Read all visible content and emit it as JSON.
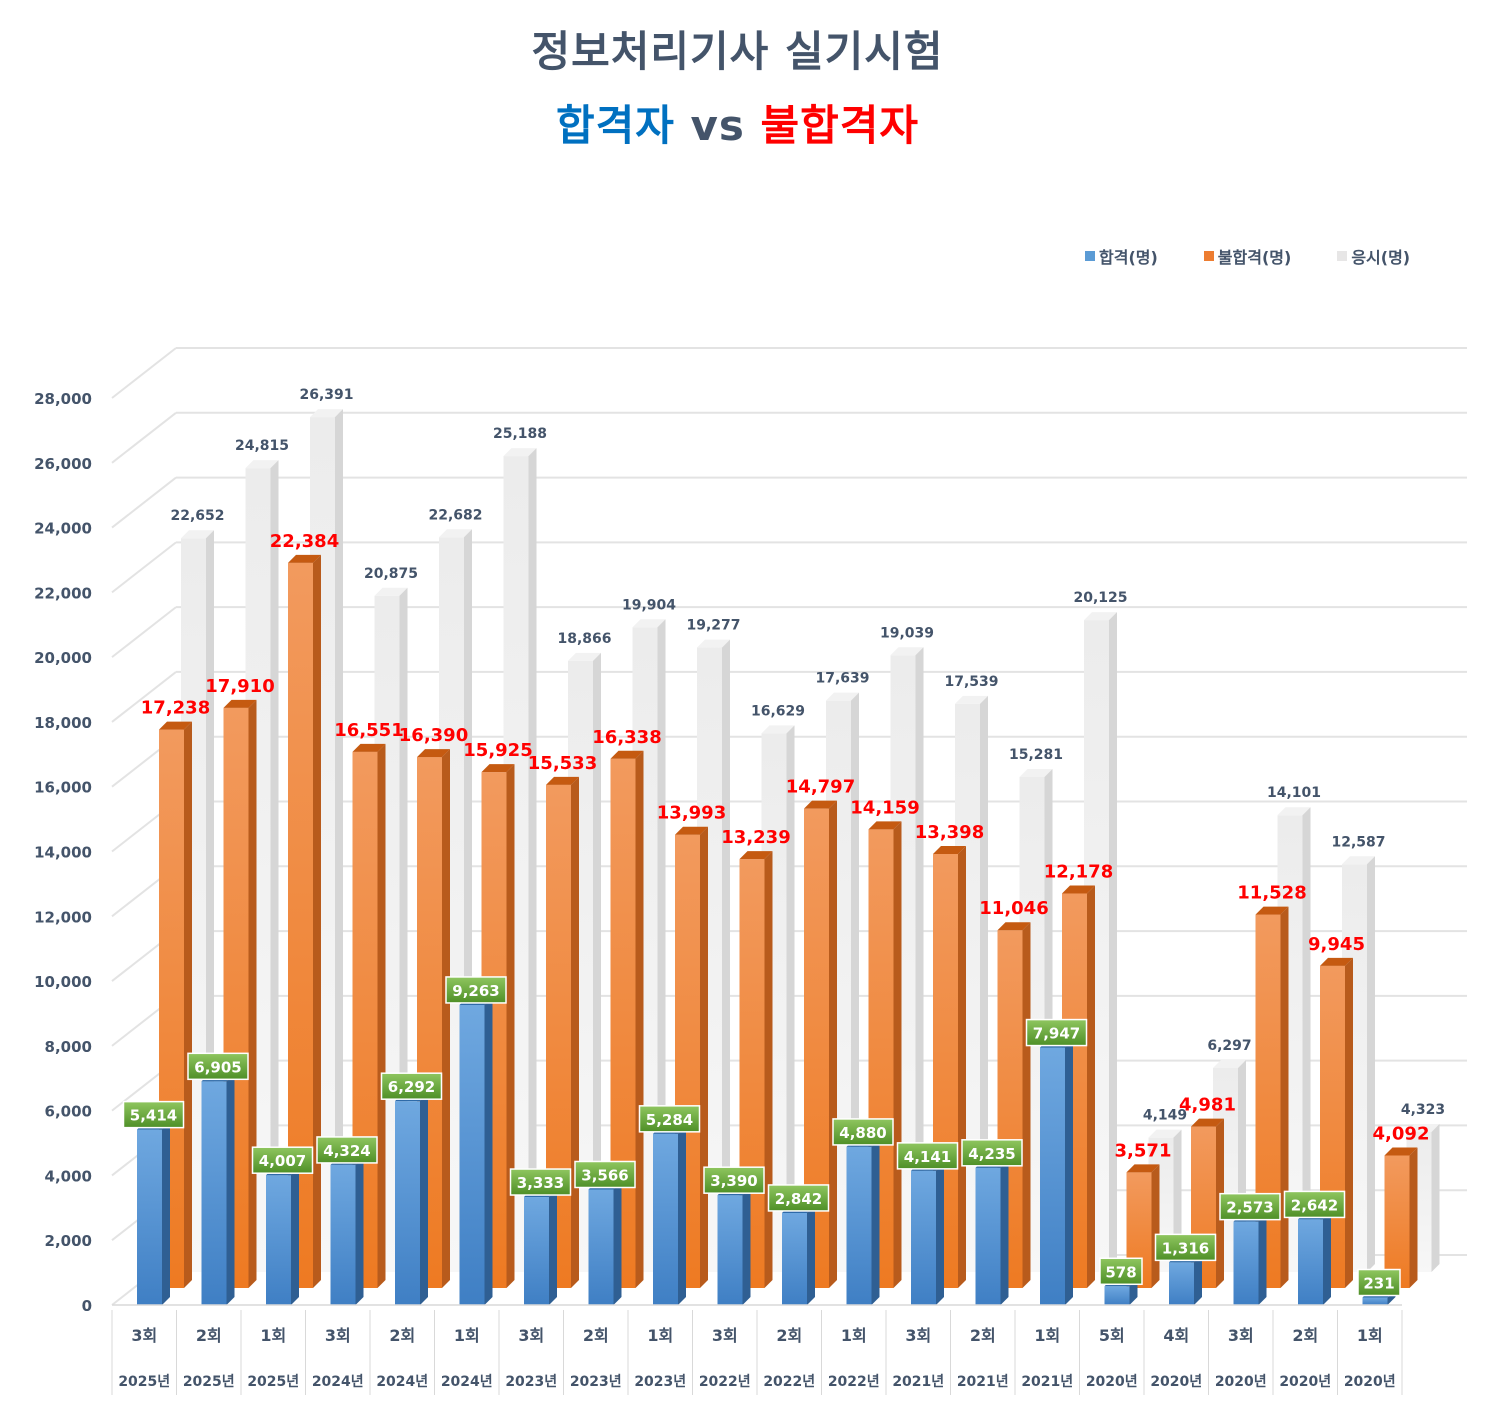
{
  "title": "정보처리기사 실기시험",
  "subtitle": {
    "pass": "합격자",
    "vs": " vs ",
    "fail": "불합격자"
  },
  "legend": [
    {
      "name": "합격(명)",
      "color": "#5b9bd5"
    },
    {
      "name": "불합격(명)",
      "color": "#ed7d31"
    },
    {
      "name": "응시(명)",
      "color": "#e7e6e6"
    }
  ],
  "chart_data": {
    "type": "bar",
    "categories": [
      [
        "3회",
        "2025년"
      ],
      [
        "2회",
        "2025년"
      ],
      [
        "1회",
        "2025년"
      ],
      [
        "3회",
        "2024년"
      ],
      [
        "2회",
        "2024년"
      ],
      [
        "1회",
        "2024년"
      ],
      [
        "3회",
        "2023년"
      ],
      [
        "2회",
        "2023년"
      ],
      [
        "1회",
        "2023년"
      ],
      [
        "3회",
        "2022년"
      ],
      [
        "2회",
        "2022년"
      ],
      [
        "1회",
        "2022년"
      ],
      [
        "3회",
        "2021년"
      ],
      [
        "2회",
        "2021년"
      ],
      [
        "1회",
        "2021년"
      ],
      [
        "5회",
        "2020년"
      ],
      [
        "4회",
        "2020년"
      ],
      [
        "3회",
        "2020년"
      ],
      [
        "2회",
        "2020년"
      ],
      [
        "1회",
        "2020년"
      ]
    ],
    "series": [
      {
        "name": "합격(명)",
        "values": [
          5414,
          6905,
          4007,
          4324,
          6292,
          9263,
          3333,
          3566,
          5284,
          3390,
          2842,
          4880,
          4141,
          4235,
          7947,
          578,
          1316,
          2573,
          2642,
          231
        ]
      },
      {
        "name": "불합격(명)",
        "values": [
          17238,
          17910,
          22384,
          16551,
          16390,
          15925,
          15533,
          16338,
          13993,
          13239,
          14797,
          14159,
          13398,
          11046,
          12178,
          3571,
          4981,
          11528,
          9945,
          4092
        ]
      },
      {
        "name": "응시(명)",
        "values": [
          22652,
          24815,
          26391,
          20875,
          22682,
          25188,
          18866,
          19904,
          19277,
          16629,
          17639,
          19039,
          17539,
          15281,
          20125,
          4149,
          6297,
          14101,
          12587,
          4323
        ]
      }
    ],
    "ylim": [
      0,
      28000
    ],
    "yticks": [
      0,
      2000,
      4000,
      6000,
      8000,
      10000,
      12000,
      14000,
      16000,
      18000,
      20000,
      22000,
      24000,
      26000,
      28000
    ],
    "grid": true,
    "legend_position": "top-right",
    "chart_style": "3d-bar"
  }
}
